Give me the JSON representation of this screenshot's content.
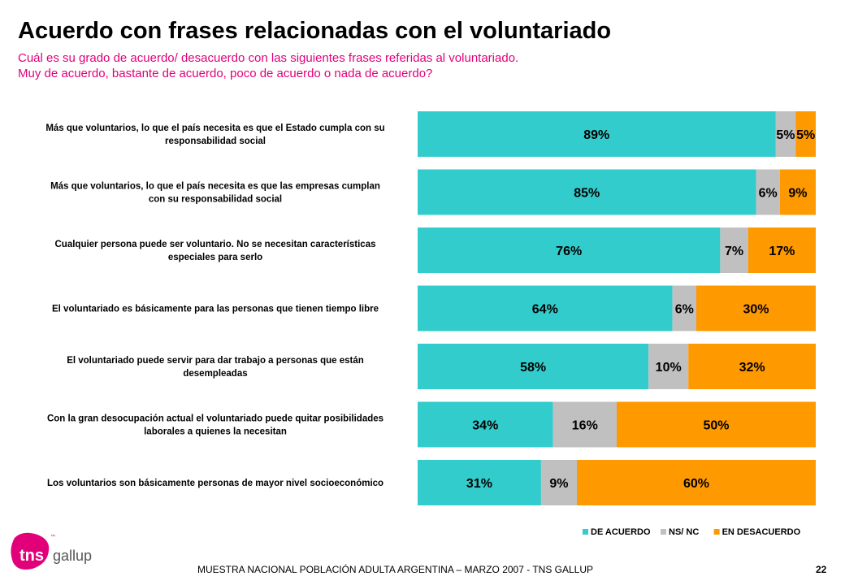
{
  "header": {
    "title": "Acuerdo con frases relacionadas con el voluntariado",
    "subtitle_line1": "Cuál es su grado de acuerdo/ desacuerdo con las siguientes frases referidas al voluntariado.",
    "subtitle_line2": "Muy de acuerdo, bastante de acuerdo, poco de acuerdo o nada de acuerdo?"
  },
  "chart_data": {
    "type": "bar",
    "orientation": "horizontal",
    "stacked": true,
    "percent_stacked": true,
    "grid": false,
    "legend_position": "bottom-right",
    "categories": [
      [
        "Más que voluntarios, lo que el país necesita es que el Estado cumpla con su",
        "responsabilidad social"
      ],
      [
        "Más que voluntarios, lo que el país necesita es que las empresas cumplan",
        "con su responsabilidad social"
      ],
      [
        "Cualquier persona puede ser voluntario. No se necesitan características",
        "especiales para serlo"
      ],
      [
        "El voluntariado es básicamente para las personas que tienen tiempo libre"
      ],
      [
        "El voluntariado puede servir para dar trabajo a personas que están",
        "desempleadas"
      ],
      [
        "Con la gran desocupación actual el voluntariado puede quitar posibilidades",
        "laborales a quienes la necesitan"
      ],
      [
        "Los voluntarios son básicamente personas de mayor nivel socioeconómico"
      ]
    ],
    "series": [
      {
        "name": "DE ACUERDO",
        "color": "#33cccc",
        "values": [
          89,
          85,
          76,
          64,
          58,
          34,
          31
        ]
      },
      {
        "name": "NS/ NC",
        "color": "#c0c0c0",
        "values": [
          5,
          6,
          7,
          6,
          10,
          16,
          9
        ]
      },
      {
        "name": "EN DESACUERDO",
        "color": "#ff9900",
        "values": [
          5,
          9,
          17,
          30,
          32,
          50,
          60
        ]
      }
    ],
    "label_suffix": "%"
  },
  "logo": {
    "brand": "tns",
    "sub": "gallup",
    "tm": "™",
    "color": "#e2007a"
  },
  "footer": {
    "text": "MUESTRA NACIONAL POBLACIÓN ADULTA ARGENTINA – MARZO 2007 - TNS GALLUP",
    "page": "22"
  }
}
